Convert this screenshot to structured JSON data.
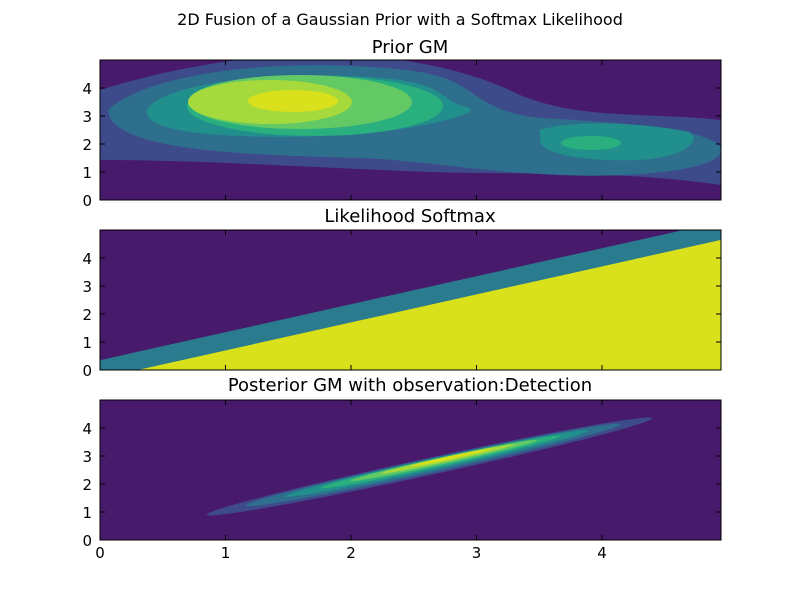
{
  "figure": {
    "suptitle": "2D Fusion of a Gaussian Prior with a Softmax Likelihood"
  },
  "colors": {
    "viridis": [
      "#471a6b",
      "#3e4b8a",
      "#2e6f8e",
      "#218f8b",
      "#2ab07e",
      "#62c964",
      "#a6d93b",
      "#d9e11c"
    ]
  },
  "chart_data": [
    {
      "type": "heatmap",
      "style": "filled-contour",
      "title": "Prior GM",
      "xlim": [
        0,
        5
      ],
      "ylim": [
        0,
        5
      ],
      "xticks": [],
      "yticks": [
        "0",
        "1",
        "2",
        "3",
        "4"
      ],
      "components": [
        {
          "mean": [
            1.5,
            3.4
          ],
          "sx": 1.25,
          "sy": 0.55,
          "weight": 1.0
        },
        {
          "mean": [
            4.0,
            2.0
          ],
          "sx": 0.7,
          "sy": 0.38,
          "weight": 0.6
        }
      ]
    },
    {
      "type": "heatmap",
      "style": "filled-contour",
      "title": "Likelihood Softmax",
      "xlim": [
        0,
        5
      ],
      "ylim": [
        0,
        5
      ],
      "xticks": [],
      "yticks": [
        "0",
        "1",
        "2",
        "3",
        "4"
      ],
      "boundary": {
        "slope": 1.0,
        "intercept_top": 0.35,
        "intercept_bottom": -0.3
      }
    },
    {
      "type": "heatmap",
      "style": "filled-contour",
      "title": "Posterior GM with observation:Detection",
      "xlim": [
        0,
        5
      ],
      "ylim": [
        0,
        5
      ],
      "xticks": [
        "0",
        "1",
        "2",
        "3",
        "4"
      ],
      "yticks": [
        "0",
        "1",
        "2",
        "3",
        "4"
      ],
      "ellipse": {
        "start": [
          0.85,
          0.9
        ],
        "end": [
          4.4,
          4.35
        ],
        "peak": [
          2.8,
          2.95
        ]
      }
    }
  ]
}
